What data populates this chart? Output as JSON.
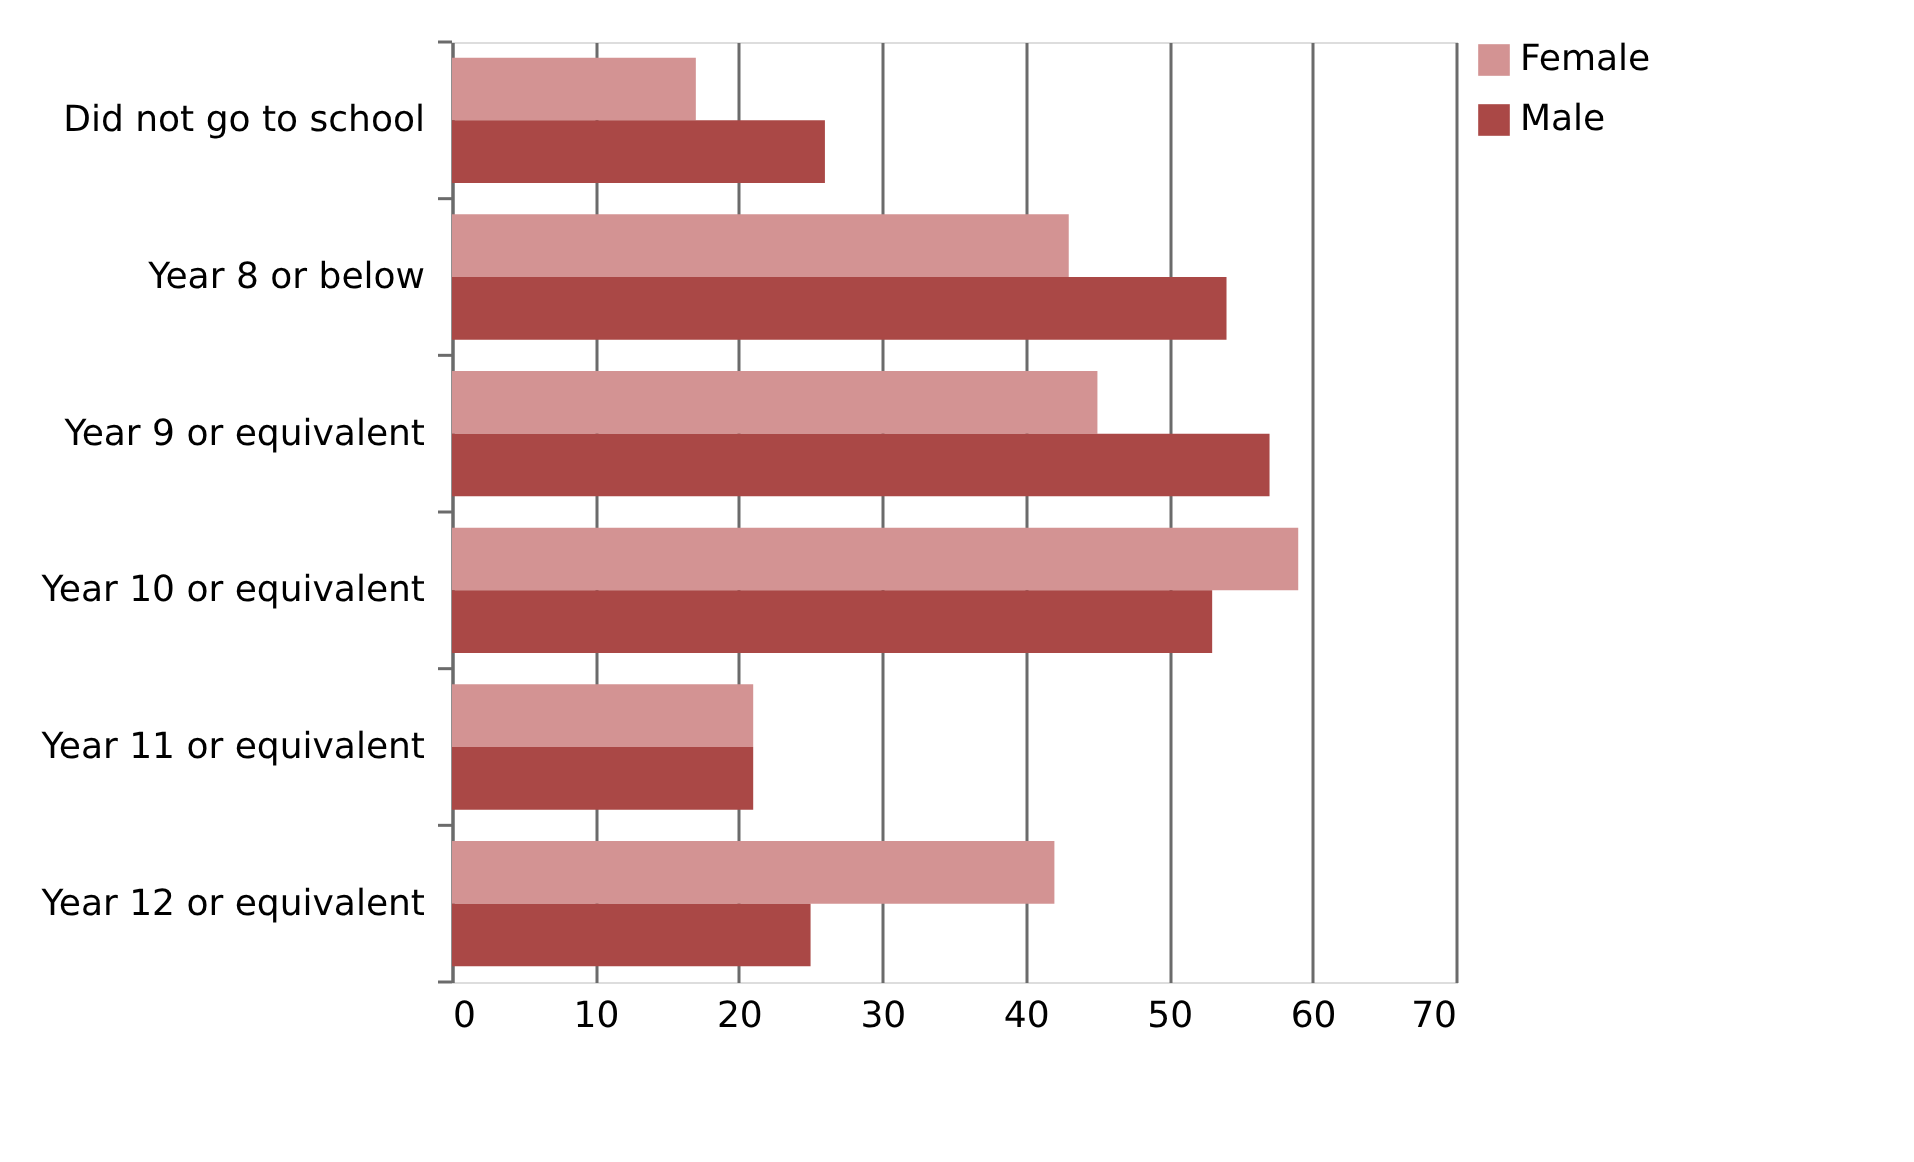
{
  "chart_data": {
    "type": "bar",
    "orientation": "horizontal",
    "categories": [
      "Did not go to school",
      "Year 8 or below ",
      "Year 9 or equivalent",
      "Year 10 or equivalent",
      "Year 11 or equivalent",
      "Year 12 or equivalent"
    ],
    "series": [
      {
        "name": "Female",
        "color": "#d39393",
        "values": [
          17,
          43,
          45,
          59,
          21,
          42
        ]
      },
      {
        "name": "Male",
        "color": "#aa4846",
        "values": [
          26,
          54,
          57,
          53,
          21,
          25
        ]
      }
    ],
    "xlim": [
      0,
      70
    ],
    "xticks": [
      0,
      10,
      20,
      30,
      40,
      50,
      60,
      70
    ],
    "grid": "x",
    "legend": "right"
  }
}
